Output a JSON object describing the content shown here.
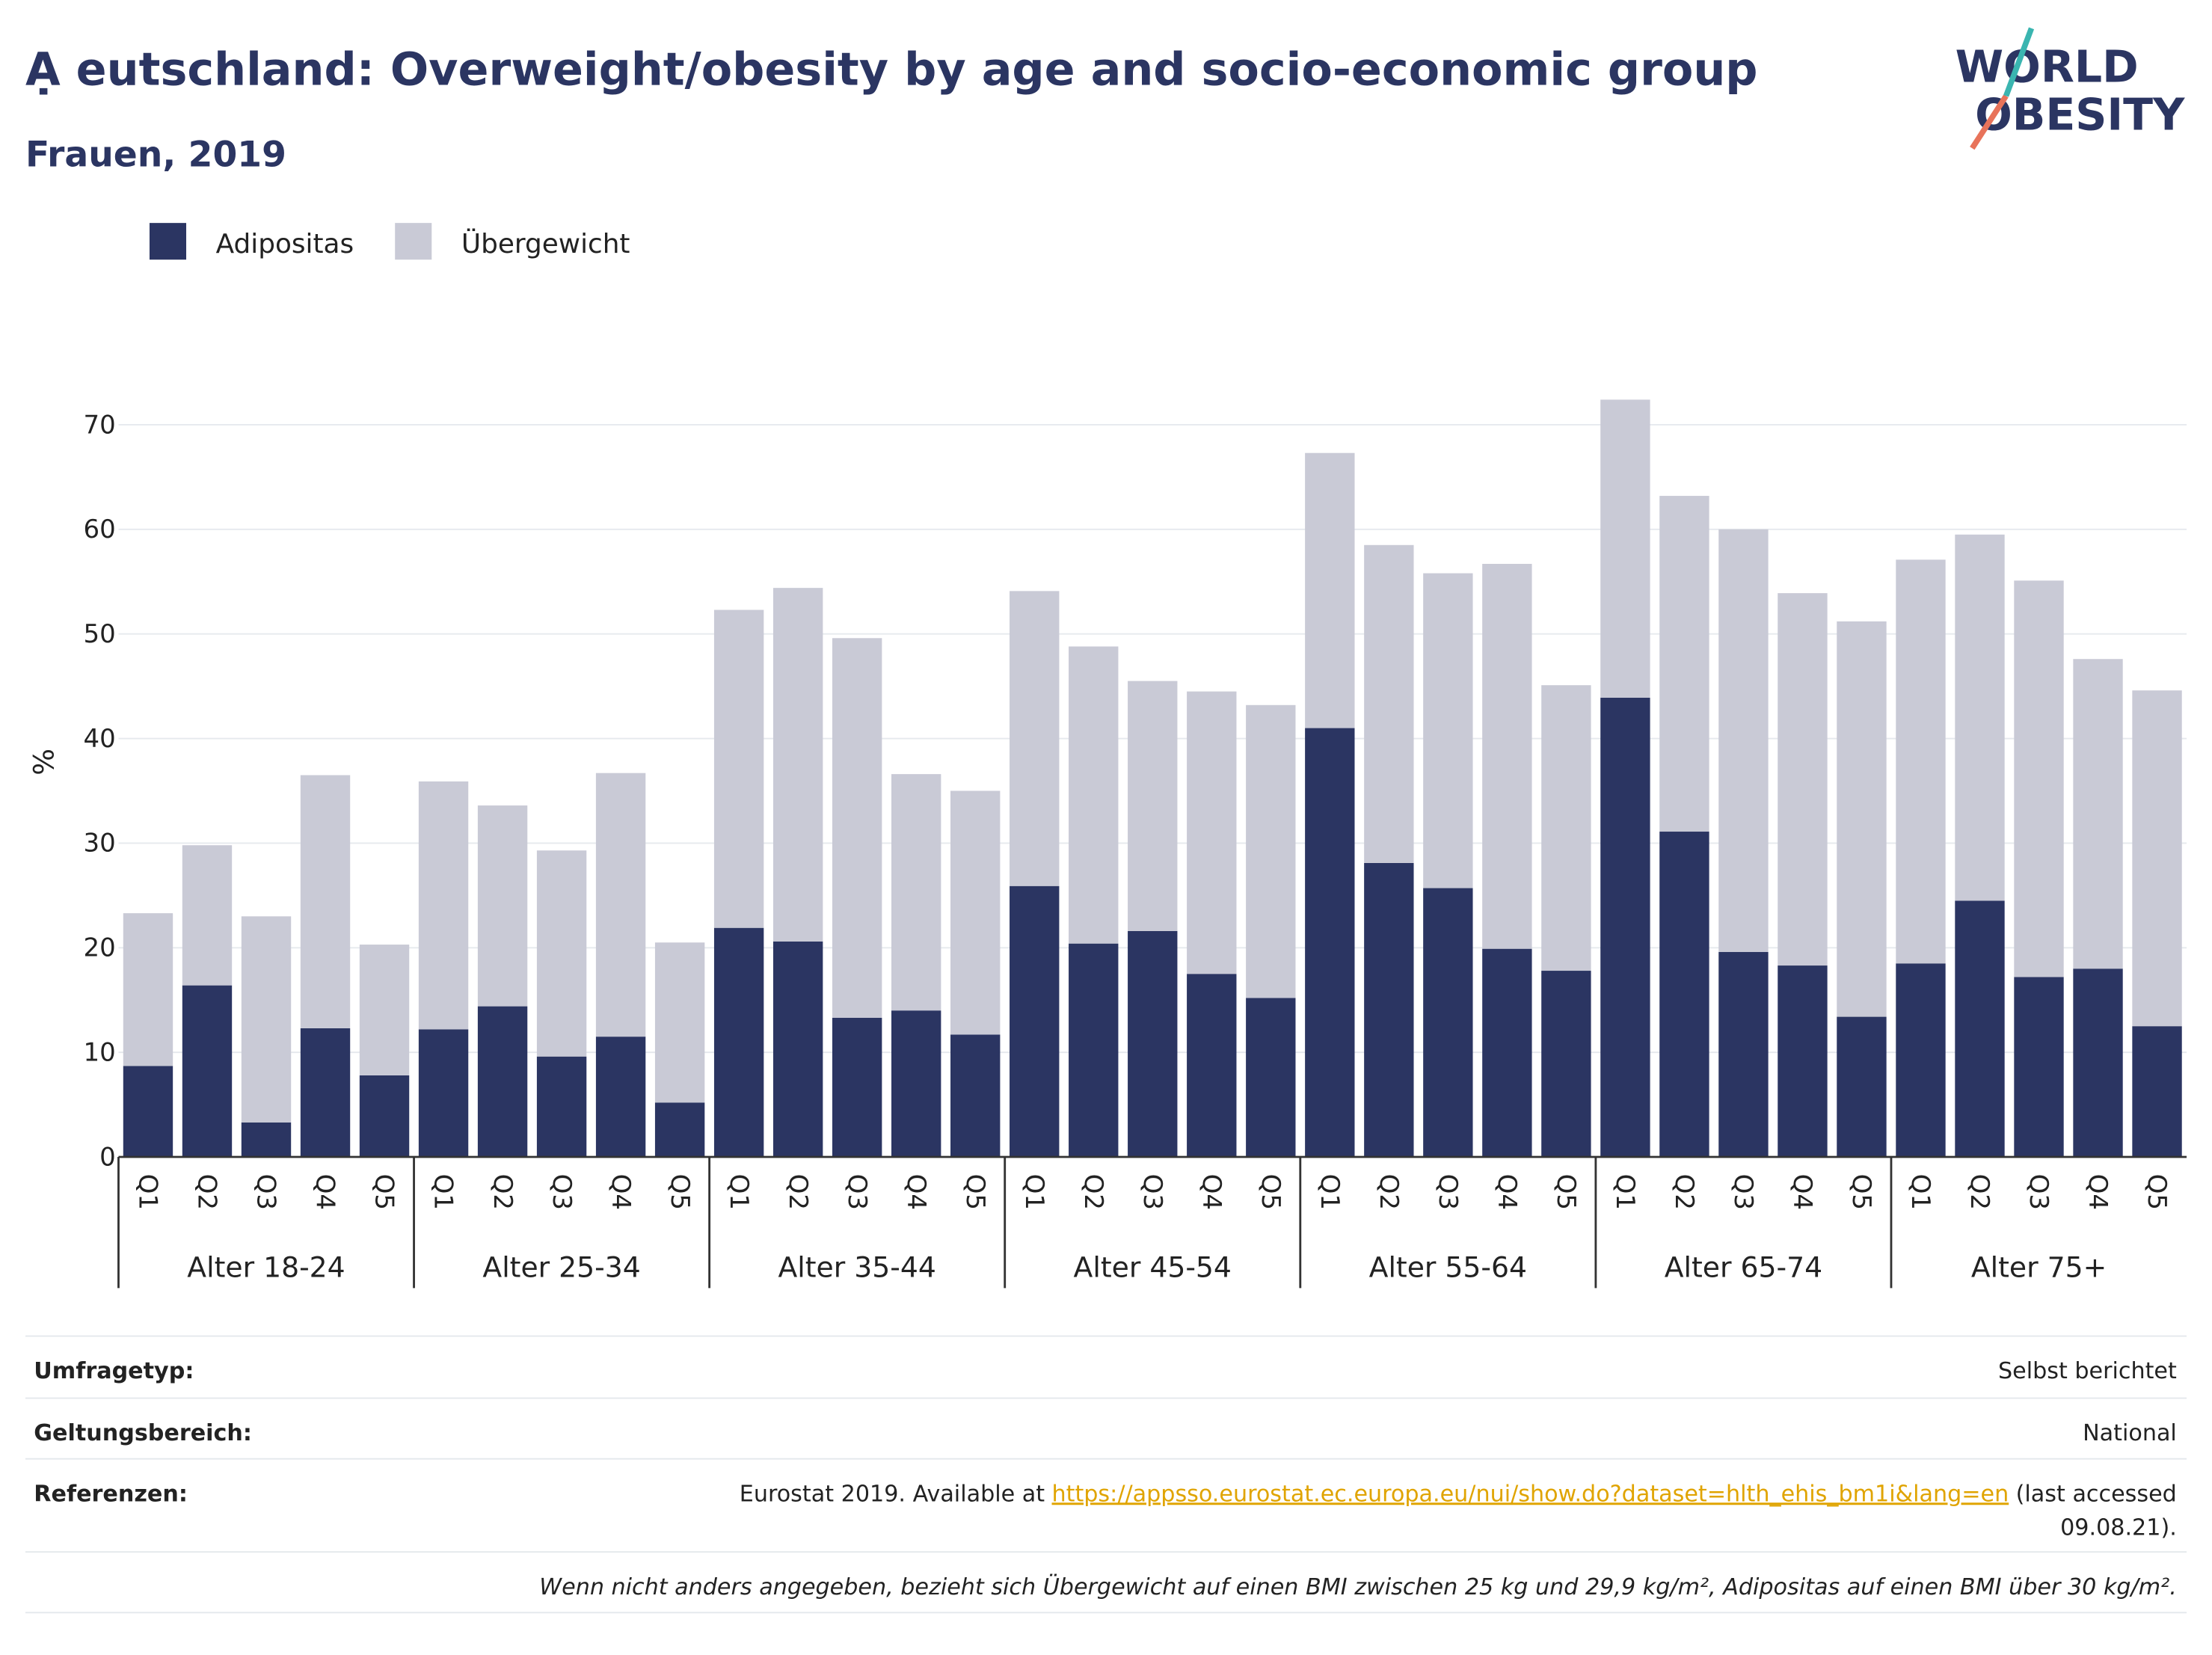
{
  "chart_data": {
    "type": "stacked_bar",
    "title": "Ạ eutschland: Overweight/obesity by age and socio-economic group",
    "subtitle": "Frauen, 2019",
    "logo": [
      "WORLD",
      "OBESITY"
    ],
    "y_label": "%",
    "categories": [
      "Q1",
      "Q2",
      "Q3",
      "Q4",
      "Q5",
      "Q1",
      "Q2",
      "Q3",
      "Q4",
      "Q5",
      "Q1",
      "Q2",
      "Q3",
      "Q4",
      "Q5",
      "Q1",
      "Q2",
      "Q3",
      "Q4",
      "Q5",
      "Q1",
      "Q2",
      "Q3",
      "Q4",
      "Q5",
      "Q1",
      "Q2",
      "Q3",
      "Q4",
      "Q5",
      "Q1",
      "Q2",
      "Q3",
      "Q4",
      "Q5"
    ],
    "groups": [
      "Alter 18-24",
      "Alter 25-34",
      "Alter 35-44",
      "Alter 45-54",
      "Alter 55-64",
      "Alter 65-74",
      "Alter 75+"
    ],
    "series": [
      {
        "name": "Adipositas",
        "color": "#2b3562",
        "values": [
          8.7,
          16.4,
          3.3,
          12.3,
          7.8,
          12.2,
          14.4,
          9.6,
          11.5,
          5.2,
          21.9,
          20.6,
          13.3,
          14.0,
          11.7,
          25.9,
          20.4,
          21.6,
          17.5,
          15.2,
          41.0,
          28.1,
          25.7,
          19.9,
          17.8,
          43.9,
          31.1,
          19.6,
          18.3,
          13.4,
          18.5,
          24.5,
          17.2,
          18.0,
          12.5
        ]
      },
      {
        "name": "Übergewicht",
        "color": "#c9cad6",
        "values": [
          14.6,
          13.4,
          19.7,
          24.2,
          12.5,
          23.7,
          19.2,
          19.7,
          25.2,
          15.3,
          30.4,
          33.8,
          36.3,
          22.6,
          23.3,
          28.2,
          28.4,
          23.9,
          27.0,
          28.0,
          26.3,
          30.4,
          30.1,
          36.8,
          27.3,
          28.5,
          32.1,
          40.4,
          35.6,
          37.8,
          38.6,
          35.0,
          37.9,
          29.6,
          32.1
        ]
      }
    ],
    "ylim": [
      0,
      75
    ],
    "yticks": [
      0,
      10,
      20,
      30,
      40,
      50,
      60,
      70
    ],
    "grid": true
  },
  "footer": {
    "rows": [
      {
        "label": "Umfragetyp:",
        "value": "Selbst berichtet"
      },
      {
        "label": "Geltungsbereich:",
        "value": "National"
      }
    ],
    "reference": {
      "label": "Referenzen:",
      "prefix": "Eurostat 2019. Available at",
      "link": "https://appsso.eurostat.ec.europa.eu/nui/show.do?dataset=hlth_ehis_bm1i&lang=en",
      "suffix_lines": [
        "(last accessed",
        "09.08.21)."
      ]
    },
    "note": "Wenn nicht anders angegeben, bezieht sich Übergewicht auf einen BMI zwischen 25 kg und 29,9 kg/m², Adipositas auf einen BMI über 30 kg/m²."
  }
}
